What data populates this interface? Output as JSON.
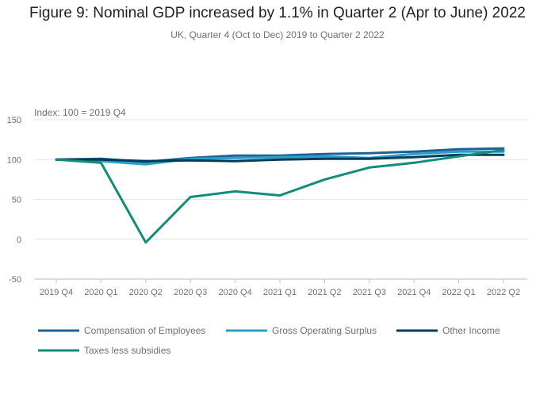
{
  "chart_data": {
    "type": "line",
    "title": "Figure 9: Nominal GDP increased by 1.1% in Quarter 2 (Apr to June) 2022",
    "subtitle": "UK, Quarter 4 (Oct to Dec) 2019 to Quarter 2 2022",
    "ylabel": "Index: 100 = 2019 Q4",
    "xlabel": "",
    "ylim": [
      -50,
      150
    ],
    "yticks": [
      -50,
      0,
      50,
      100,
      150
    ],
    "grid": true,
    "legend_position": "bottom",
    "categories": [
      "2019 Q4",
      "2020 Q1",
      "2020 Q2",
      "2020 Q3",
      "2020 Q4",
      "2021 Q1",
      "2021 Q2",
      "2021 Q3",
      "2021 Q4",
      "2022 Q1",
      "2022 Q2"
    ],
    "series": [
      {
        "name": "Compensation of Employees",
        "color": "#206095",
        "values": [
          100,
          101,
          97,
          102,
          105,
          105,
          107,
          108,
          110,
          113,
          114
        ]
      },
      {
        "name": "Gross Operating Surplus",
        "color": "#27a0cc",
        "values": [
          100,
          98,
          94,
          101,
          102,
          103,
          104,
          102,
          107,
          110,
          110
        ]
      },
      {
        "name": "Other Income",
        "color": "#003c57",
        "values": [
          100,
          100,
          98,
          99,
          98,
          100,
          101,
          101,
          103,
          106,
          106
        ]
      },
      {
        "name": "Taxes less subsidies",
        "color": "#118c7b",
        "values": [
          100,
          96,
          -4,
          53,
          60,
          55,
          75,
          90,
          96,
          104,
          112
        ]
      }
    ]
  }
}
